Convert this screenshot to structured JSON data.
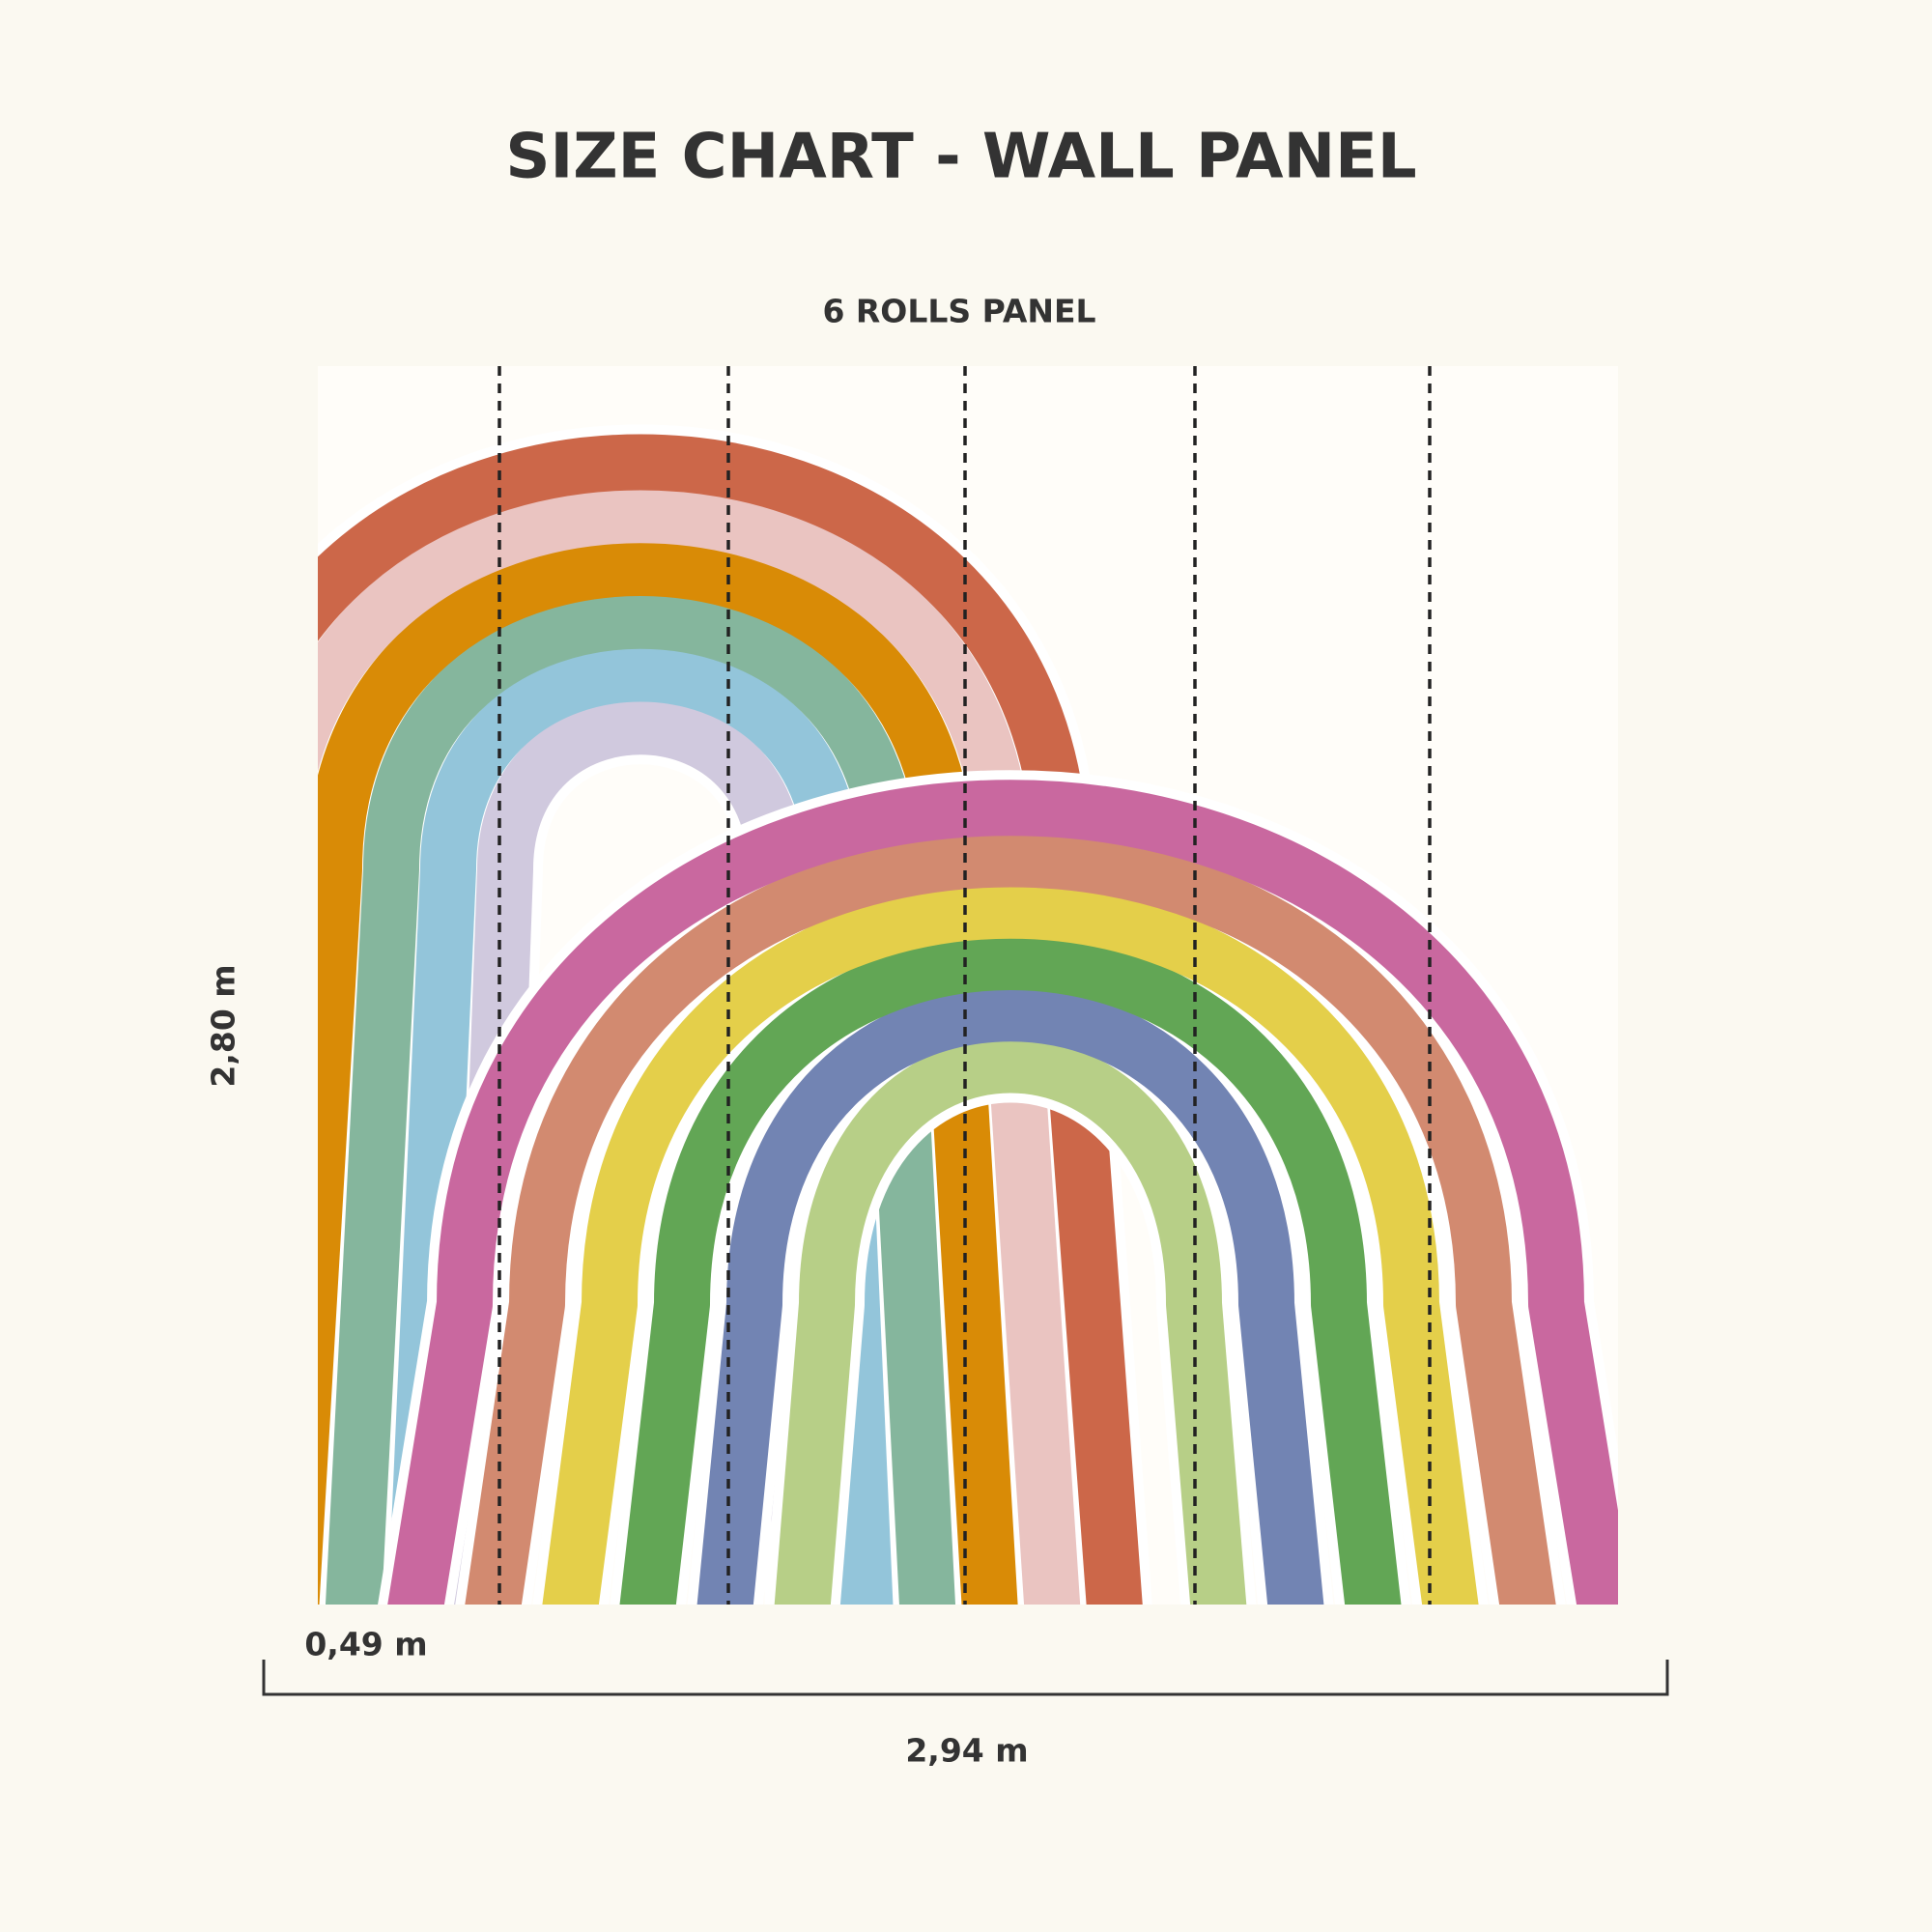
{
  "header": {
    "title": "SIZE CHART - WALL PANEL",
    "subtitle": "6 ROLLS PANEL"
  },
  "dimensions": {
    "height": "2,80 m",
    "roll_width": "0,49 m",
    "total_width": "2,94 m"
  }
}
